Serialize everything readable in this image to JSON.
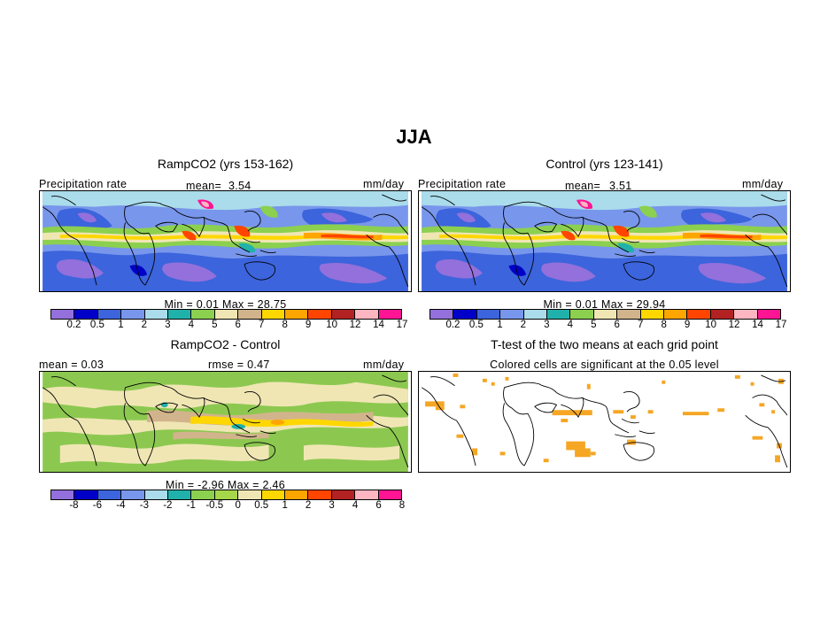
{
  "figure": {
    "title": "JJA"
  },
  "panels": {
    "ramp": {
      "title": "RampCO2 (yrs 153-162)",
      "left_label": "Precipitation rate",
      "mean_label": "mean=",
      "mean_value": "3.54",
      "units": "mm/day",
      "stats": "Min =    0.01  Max =   28.75"
    },
    "control": {
      "title": "Control (yrs 123-141)",
      "left_label": "Precipitation rate",
      "mean_label": "mean=",
      "mean_value": "3.51",
      "units": "mm/day",
      "stats": "Min =    0.01  Max =   29.94"
    },
    "diff": {
      "title": "RampCO2 - Control",
      "mean_text": "mean =   0.03",
      "rmse_text": "rmse =   0.47",
      "units": "mm/day",
      "stats": "Min =   -2.96  Max =   2.46"
    },
    "ttest": {
      "title": "T-test of the two means at each grid point",
      "subtitle": "Colored cells are significant at the 0.05 level",
      "significant_color": "#f5a623"
    }
  },
  "colorbars": {
    "precip": {
      "colors": [
        "#9370db",
        "#0000c8",
        "#3c64dc",
        "#7896eb",
        "#aadceb",
        "#20b2aa",
        "#8cd050",
        "#f0e6b4",
        "#d2b48c",
        "#ffd700",
        "#ffa500",
        "#ff4500",
        "#b22222",
        "#ffb6c1",
        "#ff1493"
      ],
      "ticks": [
        "0.2",
        "0.5",
        "1",
        "2",
        "3",
        "4",
        "5",
        "6",
        "7",
        "8",
        "9",
        "10",
        "12",
        "14",
        "17"
      ]
    },
    "diff": {
      "colors": [
        "#9370db",
        "#0000c8",
        "#3c64dc",
        "#7896eb",
        "#aadceb",
        "#20b2aa",
        "#8cd050",
        "#a6d64a",
        "#f0e6b4",
        "#ffd700",
        "#ffa500",
        "#ff4500",
        "#b22222",
        "#ffb6c1",
        "#ff1493"
      ],
      "ticks": [
        "-8",
        "-6",
        "-4",
        "-3",
        "-2",
        "-1",
        "-0.5",
        "0",
        "0.5",
        "1",
        "2",
        "3",
        "4",
        "6",
        "8"
      ]
    }
  }
}
